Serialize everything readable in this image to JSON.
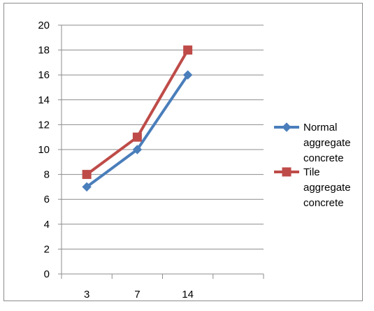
{
  "chart_data": {
    "type": "line",
    "title": "",
    "xlabel": "",
    "ylabel": "",
    "categories": [
      "3",
      "7",
      "14"
    ],
    "ylim": [
      0,
      20
    ],
    "y_ticks": [
      0,
      2,
      4,
      6,
      8,
      10,
      12,
      14,
      16,
      18,
      20
    ],
    "grid": true,
    "legend_position": "right",
    "series": [
      {
        "name": "Normal aggregate concrete",
        "legend_lines": [
          "Normal",
          "aggregate",
          "concrete"
        ],
        "values": [
          7,
          10,
          16
        ],
        "color": "#4a7ebb",
        "marker": "diamond"
      },
      {
        "name": "Tile aggregate concrete",
        "legend_lines": [
          "Tile",
          "aggregate",
          "concrete"
        ],
        "values": [
          8,
          11,
          18
        ],
        "color": "#be4b48",
        "marker": "square"
      }
    ]
  }
}
